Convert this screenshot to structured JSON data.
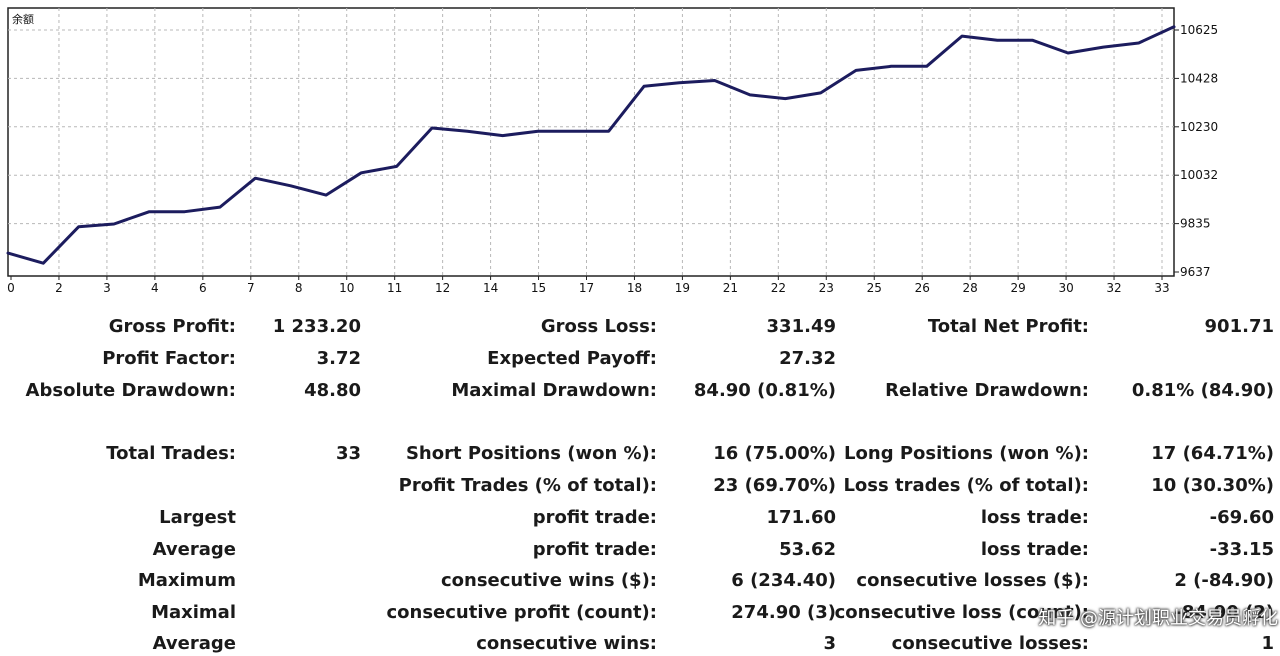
{
  "chart_data": {
    "type": "line",
    "title": "余额",
    "x_ticks": [
      "0",
      "2",
      "3",
      "4",
      "6",
      "7",
      "8",
      "10",
      "11",
      "12",
      "14",
      "15",
      "17",
      "18",
      "19",
      "21",
      "22",
      "23",
      "25",
      "26",
      "28",
      "29",
      "30",
      "32",
      "33"
    ],
    "y_ticks": [
      "10625",
      "10428",
      "10230",
      "10032",
      "9835",
      "9637"
    ],
    "ylim": [
      9637,
      10625
    ],
    "xlim": [
      0,
      33
    ],
    "grid": true,
    "line_color": "#1c1c5e",
    "series": [
      {
        "x": [
          0,
          1,
          2,
          3,
          4,
          5,
          6,
          7,
          8,
          9,
          10,
          11,
          12,
          13,
          14,
          15,
          16,
          17,
          18,
          19,
          20,
          21,
          22,
          23,
          24,
          25,
          26,
          27,
          28,
          29,
          30,
          31,
          32,
          33
        ],
        "values": [
          9714,
          9673,
          9822,
          9833,
          9883,
          9883,
          9902,
          10020,
          9989,
          9951,
          10042,
          10068,
          10225,
          10212,
          10194,
          10212,
          10212,
          10212,
          10395,
          10410,
          10419,
          10360,
          10345,
          10368,
          10460,
          10477,
          10477,
          10600,
          10583,
          10583,
          10531,
          10555,
          10572,
          10638
        ]
      }
    ]
  },
  "stats": {
    "gross_profit_label": "Gross Profit:",
    "gross_profit": "1 233.20",
    "gross_loss_label": "Gross Loss:",
    "gross_loss": "331.49",
    "total_net_profit_label": "Total Net Profit:",
    "total_net_profit": "901.71",
    "profit_factor_label": "Profit Factor:",
    "profit_factor": "3.72",
    "expected_payoff_label": "Expected Payoff:",
    "expected_payoff": "27.32",
    "absolute_drawdown_label": "Absolute Drawdown:",
    "absolute_drawdown": "48.80",
    "maximal_drawdown_label": "Maximal Drawdown:",
    "maximal_drawdown": "84.90 (0.81%)",
    "relative_drawdown_label": "Relative Drawdown:",
    "relative_drawdown": "0.81% (84.90)",
    "total_trades_label": "Total Trades:",
    "total_trades": "33",
    "short_positions_label": "Short Positions (won %):",
    "short_positions": "16 (75.00%)",
    "long_positions_label": "Long Positions (won %):",
    "long_positions": "17 (64.71%)",
    "profit_trades_label": "Profit Trades (% of total):",
    "profit_trades": "23 (69.70%)",
    "loss_trades_label": "Loss trades (% of total):",
    "loss_trades": "10 (30.30%)",
    "largest_label": "Largest",
    "largest_profit_label": "profit trade:",
    "largest_profit": "171.60",
    "largest_loss_label": "loss trade:",
    "largest_loss": "-69.60",
    "average_label": "Average",
    "average_profit_label": "profit trade:",
    "average_profit": "53.62",
    "average_loss_label": "loss trade:",
    "average_loss": "-33.15",
    "maximum_label": "Maximum",
    "max_consec_wins_label": "consecutive wins ($):",
    "max_consec_wins": "6 (234.40)",
    "max_consec_losses_label": "consecutive losses ($):",
    "max_consec_losses": "2 (-84.90)",
    "maximal_label": "Maximal",
    "maximal_consec_profit_label": "consecutive profit (count):",
    "maximal_consec_profit": "274.90 (3)",
    "maximal_consec_loss_label": "consecutive loss (count):",
    "maximal_consec_loss": "-84.90 (2)",
    "average2_label": "Average",
    "avg_consec_wins_label": "consecutive wins:",
    "avg_consec_wins": "3",
    "avg_consec_losses_label": "consecutive losses:",
    "avg_consec_losses": "1"
  },
  "watermark": "知乎 @源计划职业交易员孵化"
}
